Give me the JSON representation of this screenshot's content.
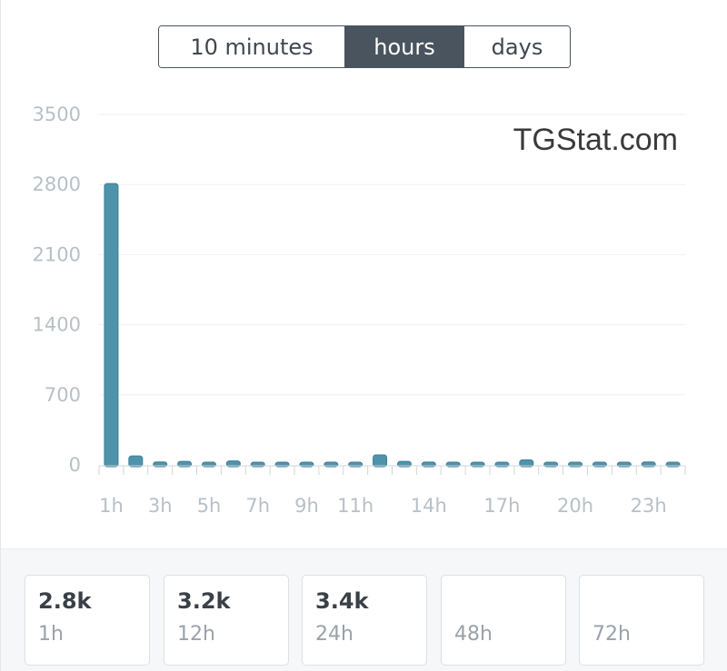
{
  "switcher": {
    "options": [
      "10 minutes",
      "hours",
      "days"
    ],
    "active": "hours"
  },
  "watermark": "TGStat.com",
  "chart_data": {
    "type": "bar",
    "title": "",
    "xlabel": "",
    "ylabel": "",
    "ylim": [
      0,
      3500
    ],
    "yticks": [
      0,
      700,
      1400,
      2100,
      2800,
      3500
    ],
    "x_tick_labels": [
      "1h",
      "3h",
      "5h",
      "7h",
      "9h",
      "11h",
      "14h",
      "17h",
      "20h",
      "23h"
    ],
    "categories": [
      "1h",
      "2h",
      "3h",
      "4h",
      "5h",
      "6h",
      "7h",
      "8h",
      "9h",
      "10h",
      "11h",
      "12h",
      "13h",
      "14h",
      "15h",
      "16h",
      "17h",
      "18h",
      "19h",
      "20h",
      "21h",
      "22h",
      "23h",
      "24h"
    ],
    "values": [
      2810,
      90,
      30,
      35,
      20,
      40,
      12,
      8,
      8,
      12,
      18,
      100,
      35,
      28,
      22,
      18,
      22,
      50,
      25,
      15,
      15,
      15,
      30,
      25
    ],
    "color": "#4f93ab",
    "grid": true
  },
  "stats": [
    {
      "value": "2.8k",
      "label": "1h"
    },
    {
      "value": "3.2k",
      "label": "12h"
    },
    {
      "value": "3.4k",
      "label": "24h"
    },
    {
      "value": "",
      "label": "48h"
    },
    {
      "value": "",
      "label": "72h"
    }
  ]
}
